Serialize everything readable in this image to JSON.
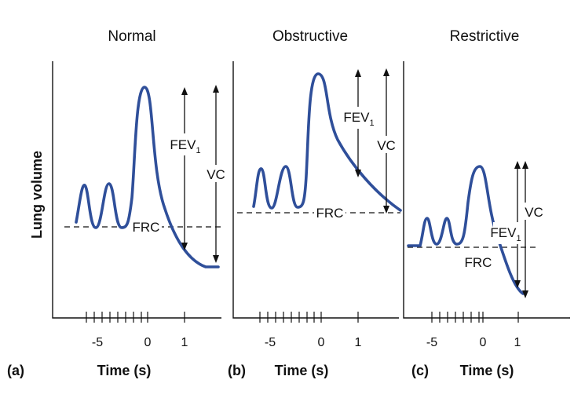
{
  "y_axis_label": "Lung volume",
  "panels": [
    {
      "title": "Normal",
      "letter": "(a)",
      "xlabel": "Time (s)",
      "tick_labels": [
        "-5",
        "0",
        "1"
      ],
      "frc_label": "FRC",
      "fev_label": "FEV",
      "fev_sub": "1",
      "vc_label": "VC"
    },
    {
      "title": "Obstructive",
      "letter": "(b)",
      "xlabel": "Time (s)",
      "tick_labels": [
        "-5",
        "0",
        "1"
      ],
      "frc_label": "FRC",
      "fev_label": "FEV",
      "fev_sub": "1",
      "vc_label": "VC"
    },
    {
      "title": "Restrictive",
      "letter": "(c)",
      "xlabel": "Time (s)",
      "tick_labels": [
        "-5",
        "0",
        "1"
      ],
      "frc_label": "FRC",
      "fev_label": "FEV",
      "fev_sub": "1",
      "vc_label": "VC"
    }
  ],
  "colors": {
    "curve": "#2f4f9a",
    "axis": "#111111"
  }
}
